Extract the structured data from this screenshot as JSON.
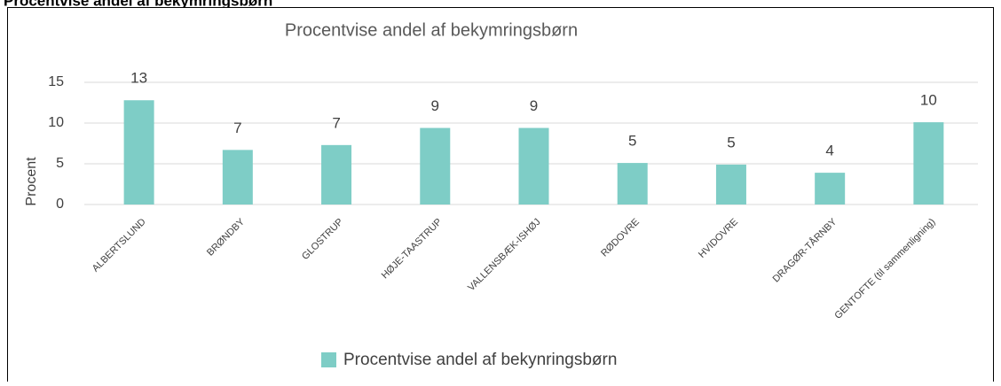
{
  "heading": "Procentvise andel af bekymringsbørn",
  "chart_data": {
    "type": "bar",
    "title": "Procentvise andel af bekymringsbørn",
    "y_label": "Procent",
    "categories": [
      "ALBERTSLUND",
      "BRØNDBY",
      "GLOSTRUP",
      "HØJE-TAASTRUP",
      "VALLENSBÆK-ISHØJ",
      "RØDOVRE",
      "HVIDOVRE",
      "DRAGØR-TÅRNBY",
      "GENTOFTE (til sammenligning)"
    ],
    "series": [
      {
        "name": "Procentvise andel af bekynringsbørn",
        "color": "#7ecdc6",
        "values": [
          12.8,
          6.7,
          7.3,
          9.4,
          9.4,
          5.1,
          4.9,
          3.9,
          10.1
        ],
        "value_labels": [
          "13",
          "7",
          "7",
          "9",
          "9",
          "5",
          "5",
          "4",
          "10"
        ]
      }
    ],
    "ylim": [
      0,
      15
    ],
    "yticks": [
      0,
      5,
      10,
      15
    ],
    "grid": true,
    "legend": "bottom"
  }
}
